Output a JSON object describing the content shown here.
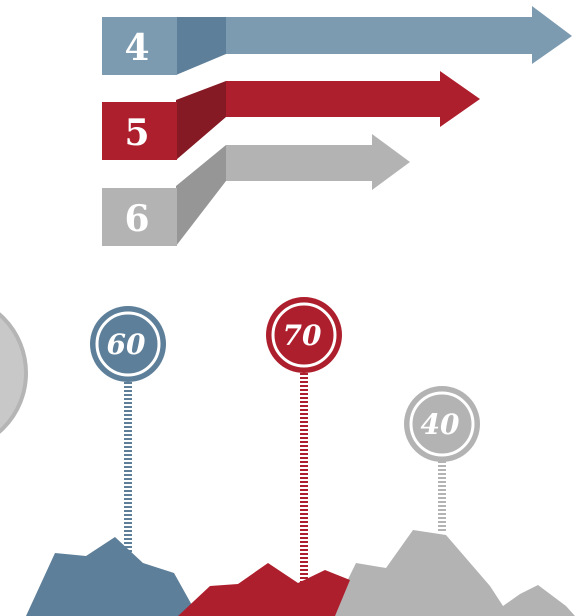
{
  "colors": {
    "blue": "#5e7f99",
    "blue_dark": "#4e6f88",
    "blue_light": "#7d9bb0",
    "red": "#ae1f2d",
    "red_dark": "#861a24",
    "gray": "#b3b3b3",
    "gray_dark": "#969696",
    "circle_gray": "#c8c8c8"
  },
  "steps": [
    {
      "label": "4",
      "color": "blue"
    },
    {
      "label": "5",
      "color": "red"
    },
    {
      "label": "6",
      "color": "gray"
    }
  ],
  "pins": [
    {
      "label": "60",
      "color": "blue"
    },
    {
      "label": "70",
      "color": "red"
    },
    {
      "label": "40",
      "color": "gray"
    }
  ]
}
